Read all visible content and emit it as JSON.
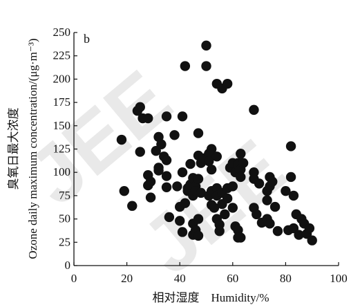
{
  "chart_data": {
    "type": "scatter",
    "panel_label": "b",
    "xlabel": "相对湿度    Humidity/%",
    "ylabel": "臭氧日最大浓度",
    "ylabel_en": "Ozone daily maximum concentration/(μg·m⁻³)",
    "xlim": [
      0,
      100
    ],
    "ylim": [
      0,
      250
    ],
    "xticks": [
      0,
      20,
      40,
      60,
      80,
      100
    ],
    "yticks": [
      0,
      25,
      50,
      75,
      100,
      125,
      150,
      175,
      200,
      225,
      250
    ],
    "grid": false,
    "marker_color": "#111111",
    "watermark": "JEE",
    "points": [
      [
        18,
        135
      ],
      [
        19,
        80
      ],
      [
        22,
        64
      ],
      [
        24,
        166
      ],
      [
        25,
        170
      ],
      [
        25,
        122
      ],
      [
        26,
        158
      ],
      [
        28,
        158
      ],
      [
        28,
        97
      ],
      [
        29,
        90
      ],
      [
        28,
        86
      ],
      [
        29,
        73
      ],
      [
        31,
        123
      ],
      [
        32,
        105
      ],
      [
        32,
        138
      ],
      [
        32,
        102
      ],
      [
        33,
        130
      ],
      [
        34,
        117
      ],
      [
        35,
        113
      ],
      [
        35,
        160
      ],
      [
        35,
        96
      ],
      [
        35,
        84
      ],
      [
        36,
        52
      ],
      [
        38,
        140
      ],
      [
        39,
        85
      ],
      [
        40,
        63
      ],
      [
        40,
        48
      ],
      [
        41,
        100
      ],
      [
        41,
        160
      ],
      [
        41,
        36
      ],
      [
        42,
        214
      ],
      [
        42,
        67
      ],
      [
        43,
        80
      ],
      [
        43,
        83
      ],
      [
        44,
        109
      ],
      [
        44,
        87
      ],
      [
        45,
        94
      ],
      [
        45,
        45
      ],
      [
        45,
        75
      ],
      [
        45,
        33
      ],
      [
        46,
        85
      ],
      [
        46,
        80
      ],
      [
        46,
        38
      ],
      [
        47,
        142
      ],
      [
        47,
        118
      ],
      [
        47,
        93
      ],
      [
        47,
        50
      ],
      [
        47,
        32
      ],
      [
        48,
        78
      ],
      [
        48,
        110
      ],
      [
        49,
        115
      ],
      [
        50,
        214
      ],
      [
        50,
        236
      ],
      [
        51,
        120
      ],
      [
        51,
        112
      ],
      [
        51,
        75
      ],
      [
        52,
        125
      ],
      [
        52,
        103
      ],
      [
        52,
        80
      ],
      [
        52,
        65
      ],
      [
        53,
        62
      ],
      [
        54,
        195
      ],
      [
        54,
        117
      ],
      [
        54,
        83
      ],
      [
        54,
        75
      ],
      [
        54,
        50
      ],
      [
        55,
        44
      ],
      [
        55,
        37
      ],
      [
        56,
        190
      ],
      [
        56,
        78
      ],
      [
        56,
        66
      ],
      [
        57,
        55
      ],
      [
        58,
        195
      ],
      [
        58,
        83
      ],
      [
        58,
        72
      ],
      [
        59,
        105
      ],
      [
        60,
        110
      ],
      [
        60,
        85
      ],
      [
        60,
        62
      ],
      [
        61,
        42
      ],
      [
        61,
        100
      ],
      [
        62,
        110
      ],
      [
        62,
        108
      ],
      [
        62,
        30
      ],
      [
        62,
        38
      ],
      [
        63,
        30
      ],
      [
        63,
        120
      ],
      [
        63,
        103
      ],
      [
        63,
        95
      ],
      [
        64,
        110
      ],
      [
        68,
        100
      ],
      [
        68,
        167
      ],
      [
        68,
        93
      ],
      [
        68,
        62
      ],
      [
        69,
        55
      ],
      [
        70,
        88
      ],
      [
        71,
        46
      ],
      [
        73,
        80
      ],
      [
        73,
        70
      ],
      [
        73,
        50
      ],
      [
        74,
        95
      ],
      [
        74,
        85
      ],
      [
        74,
        45
      ],
      [
        75,
        90
      ],
      [
        76,
        63
      ],
      [
        77,
        37
      ],
      [
        80,
        80
      ],
      [
        81,
        38
      ],
      [
        82,
        128
      ],
      [
        82,
        95
      ],
      [
        83,
        40
      ],
      [
        83,
        75
      ],
      [
        84,
        55
      ],
      [
        85,
        33
      ],
      [
        86,
        50
      ],
      [
        87,
        45
      ],
      [
        88,
        34
      ],
      [
        89,
        40
      ],
      [
        90,
        27
      ]
    ]
  }
}
